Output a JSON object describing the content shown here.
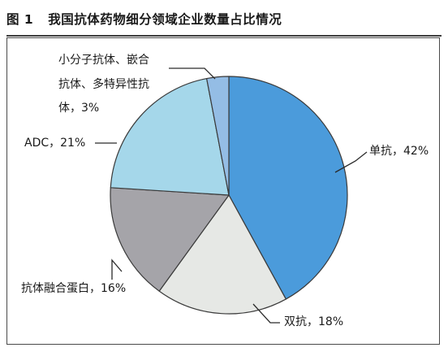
{
  "figure": {
    "number": "图 1",
    "title": "我国抗体药物细分领域企业数量占比情况"
  },
  "chart_data": {
    "type": "pie",
    "title": "我国抗体药物细分领域企业数量占比情况",
    "start_angle_deg": 0,
    "direction": "clockwise",
    "slices": [
      {
        "name": "单抗",
        "value": 42,
        "color": "#4b9bdb",
        "label_lines": [
          "单抗，42%"
        ]
      },
      {
        "name": "双抗",
        "value": 18,
        "color": "#e6e8e5",
        "label_lines": [
          "双抗，18%"
        ]
      },
      {
        "name": "抗体融合蛋白",
        "value": 16,
        "color": "#a5a4a9",
        "label_lines": [
          "抗体融合蛋白，16%"
        ]
      },
      {
        "name": "ADC",
        "value": 21,
        "color": "#a5d7ea",
        "label_lines": [
          "ADC，21%"
        ]
      },
      {
        "name": "小分子抗体、嵌合抗体、多特异性抗体",
        "value": 3,
        "color": "#94bde5",
        "label_lines": [
          "小分子抗体、嵌合",
          "抗体、多特异性抗",
          "体，3%"
        ]
      }
    ]
  }
}
